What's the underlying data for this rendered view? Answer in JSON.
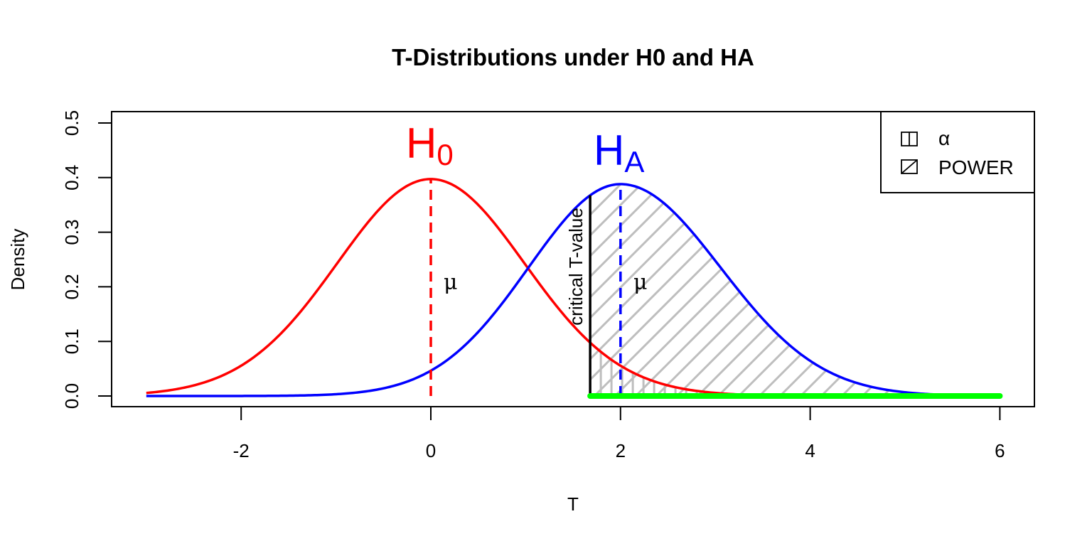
{
  "chart_data": {
    "type": "line",
    "title": "T-Distributions under H0 and HA",
    "xlabel": "T",
    "ylabel": "Density",
    "xlim": [
      -3.4,
      6.35
    ],
    "ylim": [
      -0.02,
      0.52
    ],
    "x_ticks": [
      -2,
      0,
      2,
      4,
      6
    ],
    "x_tick_labels": [
      "-2",
      "0",
      "2",
      "4",
      "6"
    ],
    "y_ticks": [
      0.0,
      0.1,
      0.2,
      0.3,
      0.4,
      0.5
    ],
    "y_tick_labels": [
      "0.0",
      "0.1",
      "0.2",
      "0.3",
      "0.4",
      "0.5"
    ],
    "grid": false,
    "x_range_plotted": [
      -3,
      6
    ],
    "critical_t_value": 1.68,
    "series": [
      {
        "name": "H0",
        "color": "#ff0000",
        "distribution": "t",
        "center": 0,
        "peak_density": 0.397,
        "x": [
          -3,
          -2.5,
          -2,
          -1.5,
          -1,
          -0.5,
          0,
          0.5,
          1,
          1.5,
          1.68,
          2,
          2.5,
          3,
          3.5,
          4,
          5,
          6
        ],
        "y": [
          0.006,
          0.019,
          0.055,
          0.13,
          0.241,
          0.351,
          0.397,
          0.351,
          0.241,
          0.13,
          0.098,
          0.055,
          0.019,
          0.006,
          0.002,
          0.0005,
          0.0,
          0.0
        ]
      },
      {
        "name": "HA",
        "color": "#0000ff",
        "distribution": "noncentral t",
        "center": 2,
        "peak_density": 0.388,
        "x": [
          -3,
          -2,
          -1,
          0,
          0.5,
          1,
          1.5,
          1.68,
          2,
          2.5,
          3,
          3.5,
          4,
          4.5,
          5,
          5.5,
          6
        ],
        "y": [
          0.0,
          0.0002,
          0.005,
          0.054,
          0.128,
          0.236,
          0.343,
          0.372,
          0.388,
          0.345,
          0.24,
          0.135,
          0.062,
          0.024,
          0.008,
          0.002,
          0.0005
        ]
      }
    ],
    "annotations": [
      {
        "text": "H",
        "subscript": "0",
        "x": 0,
        "y": 0.46,
        "color": "#ff0000"
      },
      {
        "text": "H",
        "subscript": "A",
        "x": 2,
        "y": 0.44,
        "color": "#0000ff"
      },
      {
        "text": "μ",
        "x": 0.23,
        "y": 0.2
      },
      {
        "text": "μ",
        "x": 2.23,
        "y": 0.2
      },
      {
        "text": "critical T-value",
        "x": 1.6,
        "y": 0.26,
        "rotation": -90
      }
    ],
    "vertical_lines": [
      {
        "x": 0,
        "from": 0,
        "to": 0.397,
        "style": "dashed",
        "color": "#ff0000"
      },
      {
        "x": 2,
        "from": 0,
        "to": 0.388,
        "style": "dashed",
        "color": "#0000ff"
      },
      {
        "x": 1.68,
        "from": 0,
        "to": 0.372,
        "style": "solid",
        "color": "#000000"
      }
    ],
    "shaded_regions": [
      {
        "name": "alpha",
        "under": "H0",
        "from": 1.68,
        "to": 6,
        "hatch": "vertical",
        "color": "#bebebe"
      },
      {
        "name": "POWER",
        "under": "HA",
        "from": 1.68,
        "to": 6,
        "hatch": "diagonal 45",
        "color": "#bebebe"
      }
    ],
    "baseline_segment": {
      "from": 1.68,
      "to": 6,
      "y": 0,
      "color": "#00ff00"
    },
    "legend": {
      "position": "topright",
      "entries": [
        {
          "label": "α",
          "pattern": "vertical"
        },
        {
          "label": "POWER",
          "pattern": "diagonal"
        }
      ]
    }
  },
  "labels": {
    "title": "T-Distributions under H0 and HA",
    "xlabel": "T",
    "ylabel": "Density",
    "h0_main": "H",
    "h0_sub": "0",
    "ha_main": "H",
    "ha_sub": "A",
    "mu": "μ",
    "critical": "critical T-value",
    "legend_alpha": "α",
    "legend_power": "POWER"
  },
  "colors": {
    "h0": "#ff0000",
    "ha": "#0000ff",
    "hatch": "#bebebe",
    "baseline": "#00ff00",
    "critical": "#000000"
  }
}
